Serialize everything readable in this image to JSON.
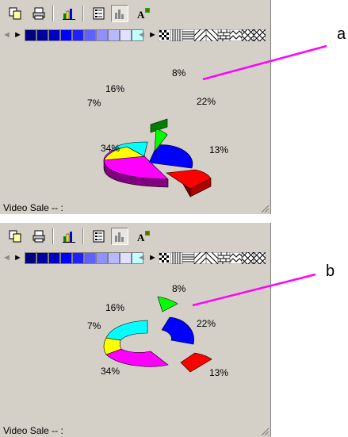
{
  "panels": [
    {
      "id": "a",
      "label": "a",
      "status": "Video Sale -- :",
      "chart_data": {
        "type": "pie",
        "variant": "3d-exploded",
        "slices": [
          {
            "value": 8,
            "label": "8%",
            "color": "#00ff00"
          },
          {
            "value": 22,
            "label": "22%",
            "color": "#0000ff"
          },
          {
            "value": 13,
            "label": "13%",
            "color": "#ff0000"
          },
          {
            "value": 34,
            "label": "34%",
            "color": "#ff00ff"
          },
          {
            "value": 7,
            "label": "7%",
            "color": "#ffff00"
          },
          {
            "value": 16,
            "label": "16%",
            "color": "#00ffff"
          }
        ]
      }
    },
    {
      "id": "b",
      "label": "b",
      "status": "Video Sale -- :",
      "chart_data": {
        "type": "pie",
        "variant": "doughnut-exploded",
        "slices": [
          {
            "value": 8,
            "label": "8%",
            "color": "#00ff00"
          },
          {
            "value": 22,
            "label": "22%",
            "color": "#0000ff"
          },
          {
            "value": 13,
            "label": "13%",
            "color": "#ff0000"
          },
          {
            "value": 34,
            "label": "34%",
            "color": "#ff00ff"
          },
          {
            "value": 7,
            "label": "7%",
            "color": "#ffff00"
          },
          {
            "value": 16,
            "label": "16%",
            "color": "#00ffff"
          }
        ]
      }
    }
  ],
  "toolbar": {
    "buttons": [
      "copy-icon",
      "print-icon",
      "bar-chart-icon",
      "legend-icon",
      "chart-type-icon",
      "font-icon"
    ]
  },
  "palette": {
    "colors": [
      "#000080",
      "#0000a0",
      "#0000c0",
      "#0000ff",
      "#2020ff",
      "#6060ff",
      "#9090ff",
      "#b8b8ff",
      "#e0e0ff",
      "#c0ffff",
      "#ffffff"
    ]
  },
  "accent_color": "#ff00ff"
}
